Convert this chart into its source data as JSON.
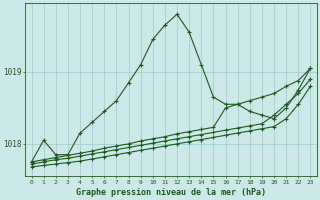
{
  "title": "Graphe pression niveau de la mer (hPa)",
  "bg_color": "#cce8e8",
  "grid_color": "#99cccc",
  "line_color": "#1a5c1a",
  "hours": [
    0,
    1,
    2,
    3,
    4,
    5,
    6,
    7,
    8,
    9,
    10,
    11,
    12,
    13,
    14,
    15,
    16,
    17,
    18,
    19,
    20,
    21,
    22,
    23
  ],
  "pressure_main": [
    1017.75,
    1018.05,
    null,
    1017.85,
    1018.15,
    1018.3,
    1018.45,
    1018.6,
    1018.85,
    1019.1,
    1019.45,
    1019.65,
    1019.8,
    1019.55,
    1019.1,
    null,
    1018.55,
    1018.55,
    null,
    null,
    null,
    null,
    null,
    1019.05
  ],
  "pressure_line1": [
    1017.75,
    1018.05,
    1017.85,
    1017.85,
    1018.15,
    1018.3,
    1018.45,
    1018.6,
    1018.85,
    1019.1,
    1019.45,
    1019.65,
    1019.8,
    1019.55,
    1019.1,
    1018.65,
    1018.55,
    1018.55,
    1018.45,
    1018.4,
    1018.35,
    1018.5,
    1018.75,
    1019.05
  ],
  "pressure_line2": [
    1017.75,
    null,
    null,
    1017.85,
    null,
    null,
    null,
    null,
    null,
    null,
    null,
    null,
    null,
    null,
    null,
    null,
    1018.5,
    1018.55,
    1018.5,
    1018.45,
    1018.35,
    1018.5,
    1018.7,
    1019.05
  ],
  "diag_top": [
    1017.75,
    1017.78,
    1017.81,
    1017.84,
    1017.87,
    1017.9,
    1017.94,
    1017.97,
    1018.0,
    1018.04,
    1018.07,
    1018.1,
    1018.14,
    1018.17,
    1018.2,
    1018.23,
    1018.5,
    1018.55,
    1018.6,
    1018.65,
    1018.7,
    1018.8,
    1018.88,
    1019.05
  ],
  "diag_mid": [
    1017.72,
    1017.75,
    1017.78,
    1017.8,
    1017.83,
    1017.86,
    1017.89,
    1017.92,
    1017.95,
    1017.98,
    1018.01,
    1018.04,
    1018.07,
    1018.1,
    1018.13,
    1018.16,
    1018.19,
    1018.22,
    1018.25,
    1018.28,
    1018.4,
    1018.55,
    1018.7,
    1018.9
  ],
  "diag_bot": [
    1017.68,
    1017.7,
    1017.72,
    1017.74,
    1017.76,
    1017.79,
    1017.82,
    1017.85,
    1017.88,
    1017.91,
    1017.94,
    1017.97,
    1018.0,
    1018.03,
    1018.06,
    1018.09,
    1018.12,
    1018.15,
    1018.18,
    1018.21,
    1018.24,
    1018.35,
    1018.55,
    1018.8
  ],
  "ylim_min": 1017.55,
  "ylim_max": 1019.95,
  "yticks": [
    1018,
    1019
  ],
  "figsize": [
    3.2,
    2.0
  ],
  "dpi": 100
}
